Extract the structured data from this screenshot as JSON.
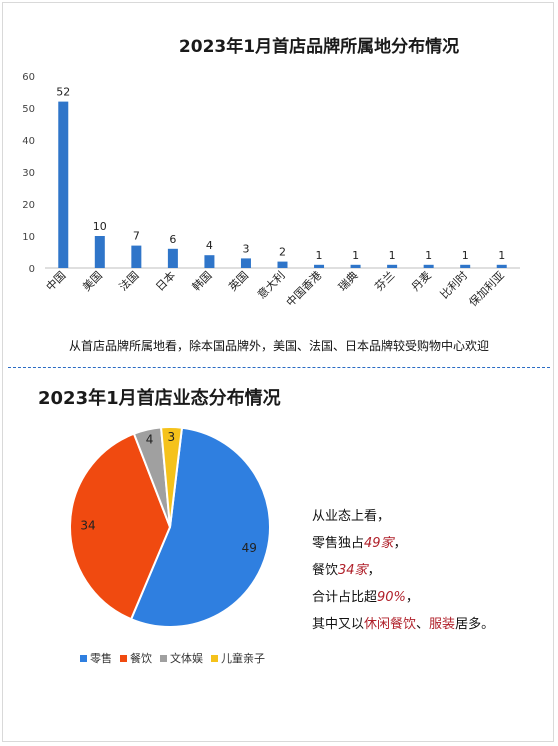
{
  "chart_data": [
    {
      "type": "bar",
      "title": "2023年1月首店品牌所属地分布情况",
      "categories": [
        "中国",
        "美国",
        "法国",
        "日本",
        "韩国",
        "英国",
        "意大利",
        "中国香港",
        "瑞典",
        "芬兰",
        "丹麦",
        "比利时",
        "保加利亚"
      ],
      "values": [
        52,
        10,
        7,
        6,
        4,
        3,
        2,
        1,
        1,
        1,
        1,
        1,
        1
      ],
      "ylim": [
        0,
        60
      ],
      "yticks": [
        "0",
        "10",
        "20",
        "30",
        "40",
        "50",
        "60"
      ],
      "grid": false,
      "color": "#2f75c9"
    },
    {
      "type": "pie",
      "title": "2023年1月首店业态分布情况",
      "slices": [
        {
          "name": "零售",
          "value": 49,
          "color": "#2f7fe0"
        },
        {
          "name": "餐饮",
          "value": 34,
          "color": "#f04a10"
        },
        {
          "name": "文体娱",
          "value": 4,
          "color": "#a0a0a0"
        },
        {
          "name": "儿童亲子",
          "value": 3,
          "color": "#f5c21b"
        }
      ],
      "legend_position": "bottom"
    }
  ],
  "bar_note": "从首店品牌所属地看，除本国品牌外，美国、法国、日本品牌较受购物中心欢迎",
  "pie_note": {
    "line1": "从业态上看，",
    "line2_prefix": "零售独占",
    "line2_value": "49家",
    "line2_suffix": "，",
    "line3_prefix": "餐饮",
    "line3_value": "34家",
    "line3_suffix": "，",
    "line4_prefix": "合计占比超",
    "line4_value": "90%",
    "line4_suffix": "，",
    "line5_prefix": "其中又以",
    "line5_hl1": "休闲餐饮",
    "line5_sep": "、",
    "line5_hl2": "服装",
    "line5_suffix": "居多。"
  }
}
